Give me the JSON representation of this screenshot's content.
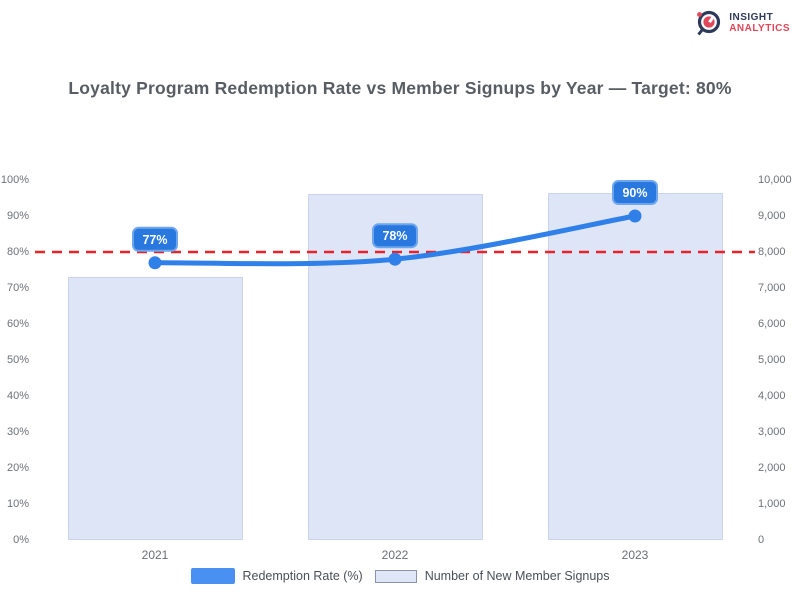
{
  "header": {
    "title": "Loyalty Program Redemption Rate vs Member Signups by Year — Target: 80%",
    "logo": {
      "line1": "INSIGHT",
      "line2": "ANALYTICS"
    }
  },
  "chart_data": {
    "type": "combo-bar-line",
    "categories": [
      "2021",
      "2022",
      "2023"
    ],
    "series": [
      {
        "name": "Number of New Member Signups",
        "type": "bar",
        "axis": "right",
        "values": [
          7300,
          9600,
          9650
        ],
        "fill_color": "#dee5f7",
        "border_color": "#c9d3ec"
      },
      {
        "name": "Redemption Rate (%)",
        "type": "line",
        "axis": "left",
        "values": [
          77,
          78,
          90
        ],
        "labels": [
          "77%",
          "78%",
          "90%"
        ],
        "color": "#2f80e8",
        "point_label_fill": "#2878df",
        "point_label_border": "#6ea6ee",
        "point_label_text_color": "#ffffff"
      }
    ],
    "target_line": {
      "value": 80,
      "axis": "left",
      "color": "#e8222a",
      "style": "dashed"
    },
    "left_axis": {
      "min": 0,
      "max": 100,
      "step": 10,
      "format": "percent"
    },
    "right_axis": {
      "min": 0,
      "max": 10000,
      "step": 1000,
      "format": "thousands"
    },
    "grid": false,
    "legend_position": "bottom"
  },
  "legend": [
    {
      "label": "Redemption Rate (%)",
      "swatch_color": "#4a90f2"
    },
    {
      "label": "Number of New Member Signups",
      "swatch_color": "#dfe6f8",
      "swatch_border": "#8a93a8"
    }
  ]
}
